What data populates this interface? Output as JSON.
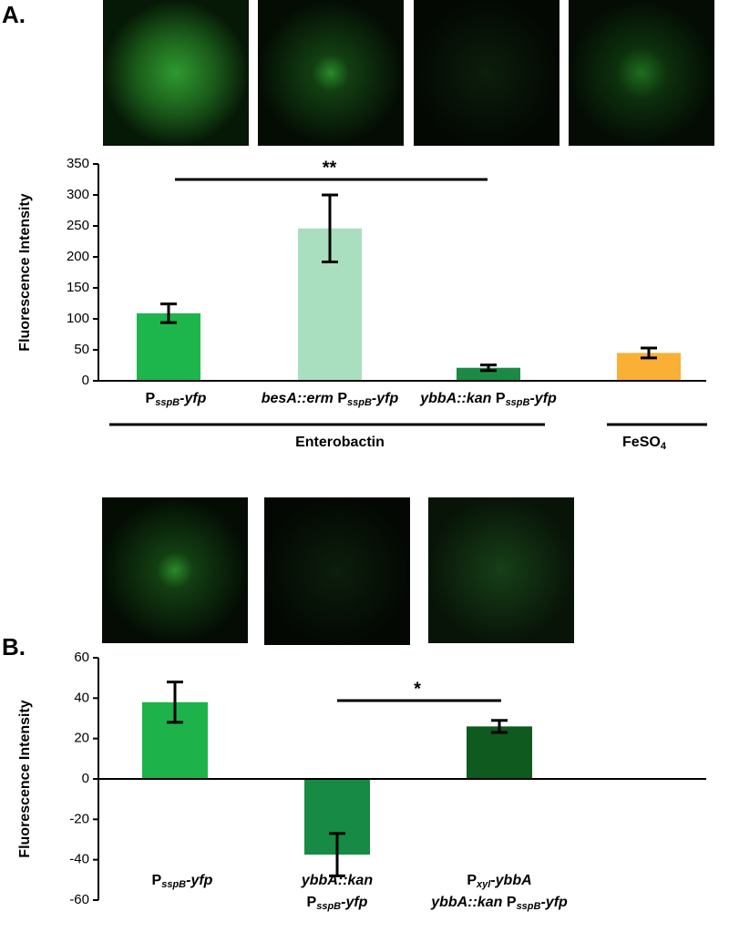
{
  "chart_data": [
    {
      "type": "bar",
      "panel_label": "A.",
      "ylabel": "Fluorescence Intensity",
      "categories": [
        [
          [
            {
              "text": "P"
            },
            {
              "text": "sspB",
              "sub": true,
              "italic": true
            },
            {
              "text": "-yfp",
              "italic": true
            }
          ]
        ],
        [
          [
            {
              "text": "besA::erm",
              "italic": true
            },
            {
              "text": " P"
            },
            {
              "text": "sspB",
              "sub": true,
              "italic": true
            },
            {
              "text": "-yfp",
              "italic": true
            }
          ]
        ],
        [
          [
            {
              "text": "ybbA::kan",
              "italic": true
            },
            {
              "text": " P"
            },
            {
              "text": "sspB",
              "sub": true,
              "italic": true
            },
            {
              "text": "-yfp",
              "italic": true
            }
          ]
        ],
        null
      ],
      "values": [
        109,
        246,
        21,
        45
      ],
      "errors": [
        15,
        54,
        4.5,
        8
      ],
      "colors": [
        "#1db64c",
        "#a9dfbf",
        "#1b8a44",
        "#f9b035"
      ],
      "ylim": [
        0,
        350
      ],
      "yticks": [
        0,
        50,
        100,
        150,
        200,
        250,
        300,
        350
      ],
      "significance": [
        "**"
      ],
      "group_labels": [
        [
          {
            "text": "Enterobactin"
          }
        ],
        [
          {
            "text": "FeSO"
          },
          {
            "text": "4",
            "sub": true
          }
        ]
      ]
    },
    {
      "type": "bar",
      "panel_label": "B.",
      "ylabel": "Fluorescence Intensity",
      "categories": [
        [
          [
            {
              "text": "P"
            },
            {
              "text": "sspB",
              "sub": true,
              "italic": true
            },
            {
              "text": "-yfp",
              "italic": true
            }
          ]
        ],
        [
          [
            {
              "text": "ybbA::kan",
              "italic": true
            }
          ],
          [
            {
              "text": "P"
            },
            {
              "text": "sspB",
              "sub": true,
              "italic": true
            },
            {
              "text": "-yfp",
              "italic": true
            }
          ]
        ],
        [
          [
            {
              "text": "P"
            },
            {
              "text": "xyl",
              "sub": true,
              "italic": true
            },
            {
              "text": "-ybbA",
              "italic": true
            }
          ],
          [
            {
              "text": "ybbA::kan",
              "italic": true
            },
            {
              "text": " P"
            },
            {
              "text": "sspB",
              "sub": true,
              "italic": true
            },
            {
              "text": "-yfp",
              "italic": true
            }
          ]
        ]
      ],
      "values": [
        38,
        -37.5,
        26
      ],
      "errors": [
        10,
        10.5,
        3
      ],
      "colors": [
        "#1db34a",
        "#178a45",
        "#0f5a1e"
      ],
      "ylim": [
        -60,
        60
      ],
      "yticks": [
        -60,
        -40,
        -20,
        0,
        20,
        40,
        60
      ],
      "significance": [
        "*"
      ]
    }
  ]
}
